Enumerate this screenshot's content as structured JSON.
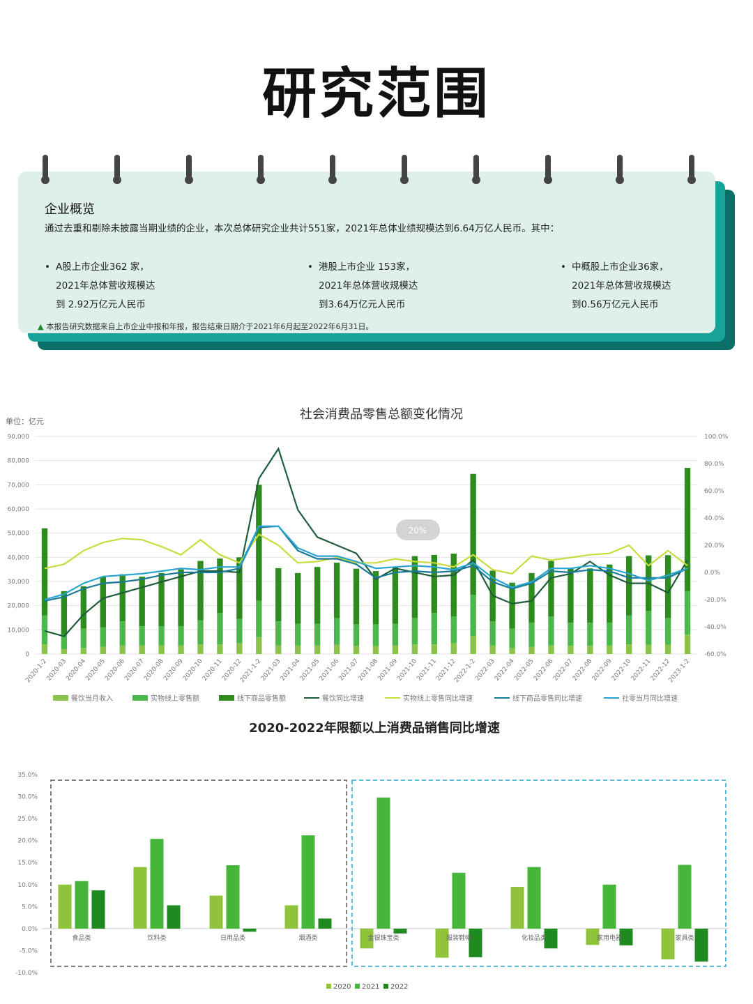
{
  "page": {
    "title": "研究范围"
  },
  "overview": {
    "heading": "企业概览",
    "intro": "通过去重和剔除未披露当期业绩的企业，本次总体研究企业共计551家，2021年总体业绩规模达到6.64万亿人民币。其中：",
    "items": [
      {
        "line1": "A股上市企业362 家，",
        "line2": "2021年总体营收规模达",
        "line3": "到 2.92万亿元人民币"
      },
      {
        "line1": "港股上市企业 153家，",
        "line2": "2021年总体营收规模达",
        "line3": "到3.64万亿元人民币"
      },
      {
        "line1": "中概股上市企业36家，",
        "line2": "2021年总体营收规模达",
        "line3": "到0.56万亿元人民币"
      }
    ],
    "note_icon": "triangle-icon",
    "note": "本报告研究数据来自上市企业中报和年报，报告结束日期介于2021年6月起至2022年6月31日。"
  },
  "chart_data": [
    {
      "type": "bar",
      "title": "社会消费品零售总额变化情况",
      "unit_label": "单位：亿元",
      "badge": "20%",
      "y_ticks": [
        "0",
        "10,000",
        "20,000",
        "30,000",
        "40,000",
        "50,000",
        "60,000",
        "70,000",
        "80,000",
        "90,000"
      ],
      "y2_ticks": [
        "-60.0%",
        "-40.0%",
        "-20.0%",
        "0.0%",
        "20.0%",
        "40.0%",
        "60.0%",
        "80.0%",
        "100.0%"
      ],
      "ylim": [
        0,
        90000
      ],
      "y2lim": [
        -60,
        100
      ],
      "categories": [
        "2020-1-2",
        "2020-03",
        "2020-04",
        "2020-05",
        "2020-06",
        "2020-07",
        "2020-08",
        "2020-09",
        "2020-10",
        "2020-11",
        "2020-12",
        "2021-1-2",
        "2021-03",
        "2021-04",
        "2021-05",
        "2021-06",
        "2021-07",
        "2021-08",
        "2021-09",
        "2021-10",
        "2021-11",
        "2021-12",
        "2022-1-2",
        "2022-03",
        "2022-04",
        "2022-05",
        "2022-06",
        "2022-07",
        "2022-08",
        "2022-09",
        "2022-10",
        "2022-11",
        "2022-12",
        "2023-1-2"
      ],
      "bar_series": [
        {
          "name": "餐饮当月收入",
          "color": "#8bc34a",
          "values": [
            4000,
            2000,
            2500,
            3000,
            3500,
            3500,
            3500,
            3500,
            4000,
            4000,
            4500,
            7000,
            3500,
            3500,
            3500,
            3800,
            3300,
            3300,
            3500,
            4000,
            4000,
            4500,
            7500,
            3500,
            2500,
            3000,
            3500,
            3400,
            3400,
            3500,
            4000,
            3800,
            3900,
            8000
          ]
        },
        {
          "name": "实物线上零售额",
          "color": "#4cb84c",
          "values": [
            12000,
            6000,
            8000,
            8000,
            10000,
            8000,
            8000,
            8000,
            10000,
            13000,
            10000,
            15000,
            10000,
            9000,
            9000,
            11000,
            9000,
            9000,
            9000,
            11000,
            13000,
            11000,
            17000,
            10000,
            8000,
            10000,
            12000,
            9500,
            9500,
            9500,
            12000,
            14000,
            11000,
            18000
          ]
        },
        {
          "name": "线下商品零售额",
          "color": "#2e8b1e",
          "values": [
            36000,
            18000,
            17500,
            21000,
            19500,
            20500,
            22000,
            23500,
            24500,
            22500,
            25500,
            48000,
            22000,
            21000,
            23500,
            23000,
            23000,
            22000,
            23500,
            25500,
            24000,
            26000,
            50000,
            21000,
            19000,
            20500,
            23000,
            22500,
            22500,
            24000,
            24500,
            23000,
            26000,
            51000
          ]
        }
      ],
      "line_series": [
        {
          "name": "餐饮同比增速",
          "color": "#1e5c3a",
          "values": [
            -43,
            -47,
            -31,
            -19,
            -15,
            -11,
            -7,
            -3,
            1,
            1,
            0,
            69,
            91,
            46,
            26,
            20,
            14,
            -5,
            3,
            0,
            -3,
            -2,
            9,
            -17,
            -23,
            -21,
            -4,
            -1,
            8,
            -2,
            -8,
            -8,
            -15,
            9
          ]
        },
        {
          "name": "实物线上零售同比增速",
          "color": "#c8dc3c",
          "values": [
            3,
            6,
            16,
            22,
            25,
            24,
            19,
            13,
            24,
            13,
            7,
            28,
            20,
            7,
            8,
            11,
            7,
            7,
            10,
            8,
            7,
            4,
            13,
            2,
            -1,
            12,
            9,
            11,
            13,
            14,
            20,
            5,
            16,
            5
          ]
        },
        {
          "name": "线下商品零售同比增速",
          "color": "#1a7a9a",
          "values": [
            -21,
            -18,
            -12,
            -8,
            -7,
            -5,
            -2,
            0,
            0,
            0,
            3,
            33,
            34,
            16,
            10,
            10,
            6,
            -4,
            0,
            1,
            0,
            1,
            5,
            -7,
            -12,
            -8,
            1,
            0,
            2,
            1,
            -4,
            -4,
            -4,
            3
          ]
        },
        {
          "name": "社零当月同比增速",
          "color": "#2aa5d0",
          "values": [
            -20,
            -16,
            -8,
            -3,
            -2,
            -1,
            1,
            3,
            2,
            4,
            4,
            34,
            34,
            18,
            12,
            12,
            8,
            3,
            4,
            5,
            4,
            2,
            7,
            -4,
            -11,
            -7,
            3,
            3,
            5,
            3,
            -1,
            -6,
            -2,
            3
          ]
        }
      ]
    },
    {
      "type": "bar",
      "title": "2020-2022年限额以上消费品销售同比增速",
      "ylim": [
        -10,
        35
      ],
      "y_ticks": [
        "-10.0%",
        "-5.0%",
        "0.0%",
        "5.0%",
        "10.0%",
        "15.0%",
        "20.0%",
        "25.0%",
        "30.0%",
        "35.0%"
      ],
      "categories": [
        "食品类",
        "饮料类",
        "日用品类",
        "烟酒类",
        "金银珠宝类",
        "服装鞋帽",
        "化妆品类",
        "家用电器",
        "家具类"
      ],
      "series": [
        {
          "name": "2020",
          "color": "#8fc33a",
          "values": [
            10,
            14,
            7.5,
            5.3,
            -4.5,
            -6.6,
            9.5,
            -3.7,
            -7
          ]
        },
        {
          "name": "2021",
          "color": "#46b63a",
          "values": [
            10.8,
            20.4,
            14.4,
            21.2,
            29.8,
            12.7,
            14,
            10,
            14.5
          ]
        },
        {
          "name": "2022",
          "color": "#1f8a1f",
          "values": [
            8.7,
            5.3,
            -0.7,
            2.3,
            -1.1,
            -6.5,
            -4.5,
            -3.8,
            -7.5
          ]
        }
      ]
    }
  ]
}
